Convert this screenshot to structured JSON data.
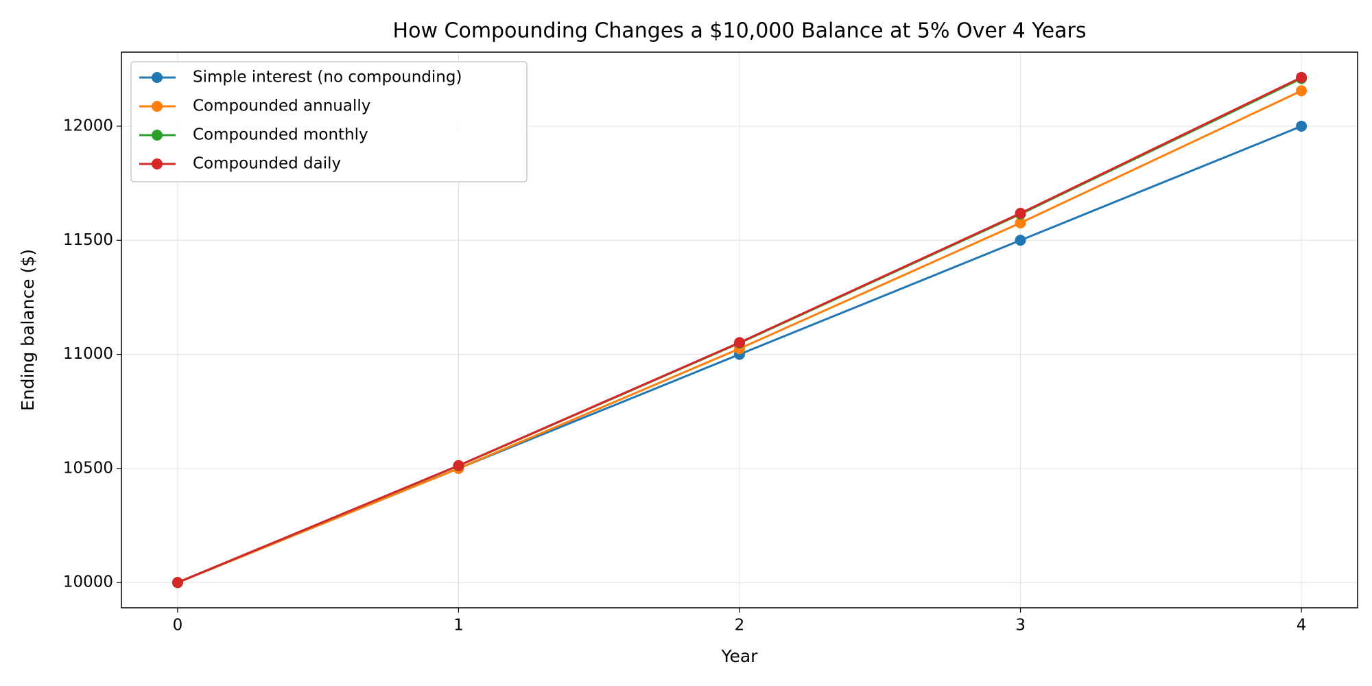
{
  "chart_data": {
    "type": "line",
    "title": "How Compounding Changes a $10,000 Balance at 5% Over 4 Years",
    "x_label": "Year",
    "y_label": "Ending balance ($)",
    "x": [
      0,
      1,
      2,
      3,
      4
    ],
    "series": [
      {
        "name": "Simple interest (no compounding)",
        "color": "#1f77b4",
        "values": [
          10000,
          10500,
          11000,
          11500,
          12000
        ]
      },
      {
        "name": "Compounded annually",
        "color": "#ff7f0e",
        "values": [
          10000,
          10500,
          11025,
          11576.25,
          12155.06
        ]
      },
      {
        "name": "Compounded monthly",
        "color": "#2ca02c",
        "values": [
          10000,
          10511.62,
          11049.41,
          11614.72,
          12208.95
        ]
      },
      {
        "name": "Compounded daily",
        "color": "#d62728",
        "values": [
          10000,
          10512.67,
          11051.68,
          11618.34,
          12213.89
        ]
      }
    ],
    "xlim": [
      -0.2,
      4.2
    ],
    "xticks": [
      0,
      1,
      2,
      3,
      4
    ],
    "ylim": [
      9889.3,
      12324.6
    ],
    "yticks": [
      10000,
      10500,
      11000,
      11500,
      12000
    ],
    "grid": true,
    "legend": "upper-left"
  }
}
